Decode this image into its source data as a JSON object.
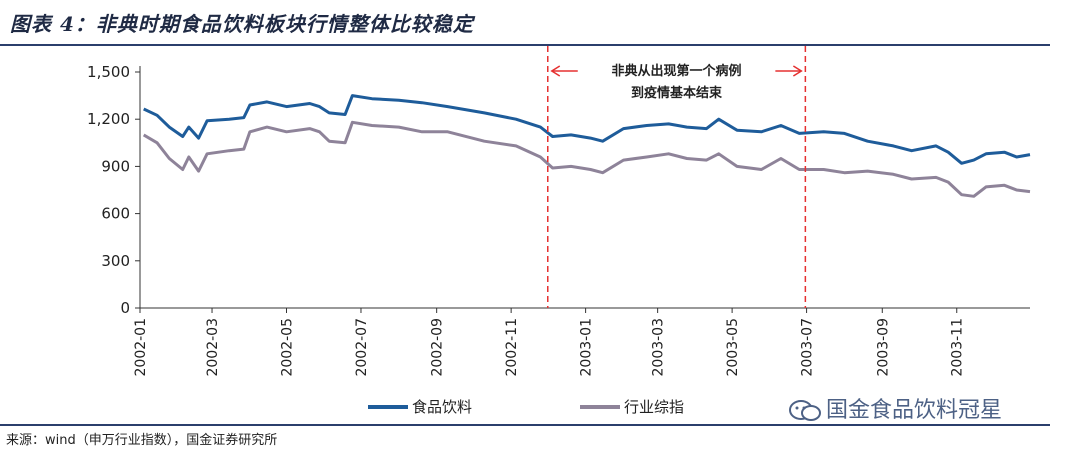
{
  "header": {
    "title": "图表 4：非典时期食品饮料板块行情整体比较稳定"
  },
  "footer": {
    "source": "来源：wind（申万行业指数），国金证券研究所",
    "watermark": "国金食品饮料冠星"
  },
  "colors": {
    "food_beverage": "#1e5c9a",
    "industry_composite": "#8e8399",
    "annotation": "#e53030",
    "rule": "#2b3f6c"
  },
  "chart_data": {
    "type": "line",
    "title": "",
    "xlabel": "",
    "ylabel": "",
    "ylim": [
      0,
      1500
    ],
    "yticks": [
      0,
      300,
      600,
      900,
      1200,
      1500
    ],
    "ytick_labels": [
      "0",
      "300",
      "600",
      "900",
      "1,200",
      "1,500"
    ],
    "xlim": [
      "2002-01-01",
      "2003-12-31"
    ],
    "xticks": [
      "2002-01",
      "2002-03",
      "2002-05",
      "2002-07",
      "2002-09",
      "2002-11",
      "2003-01",
      "2003-03",
      "2003-05",
      "2003-07",
      "2003-09",
      "2003-11"
    ],
    "grid": false,
    "legend_position": "bottom",
    "series": [
      {
        "name": "食品饮料",
        "color": "#1e5c9a",
        "points": [
          [
            "2002-01-04",
            1265
          ],
          [
            "2002-01-15",
            1225
          ],
          [
            "2002-01-25",
            1150
          ],
          [
            "2002-02-05",
            1090
          ],
          [
            "2002-02-10",
            1150
          ],
          [
            "2002-02-18",
            1080
          ],
          [
            "2002-02-25",
            1190
          ],
          [
            "2002-03-15",
            1200
          ],
          [
            "2002-03-27",
            1210
          ],
          [
            "2002-04-01",
            1290
          ],
          [
            "2002-04-15",
            1310
          ],
          [
            "2002-05-01",
            1280
          ],
          [
            "2002-05-20",
            1300
          ],
          [
            "2002-05-28",
            1280
          ],
          [
            "2002-06-05",
            1240
          ],
          [
            "2002-06-18",
            1230
          ],
          [
            "2002-06-24",
            1350
          ],
          [
            "2002-07-10",
            1330
          ],
          [
            "2002-08-01",
            1320
          ],
          [
            "2002-08-20",
            1305
          ],
          [
            "2002-09-10",
            1280
          ],
          [
            "2002-10-10",
            1240
          ],
          [
            "2002-11-05",
            1200
          ],
          [
            "2002-11-25",
            1150
          ],
          [
            "2002-12-05",
            1090
          ],
          [
            "2002-12-20",
            1100
          ],
          [
            "2003-01-05",
            1080
          ],
          [
            "2003-01-15",
            1060
          ],
          [
            "2003-02-01",
            1140
          ],
          [
            "2003-02-20",
            1160
          ],
          [
            "2003-03-10",
            1170
          ],
          [
            "2003-03-25",
            1150
          ],
          [
            "2003-04-10",
            1140
          ],
          [
            "2003-04-20",
            1200
          ],
          [
            "2003-05-05",
            1130
          ],
          [
            "2003-05-25",
            1120
          ],
          [
            "2003-06-10",
            1160
          ],
          [
            "2003-06-25",
            1110
          ],
          [
            "2003-07-15",
            1120
          ],
          [
            "2003-08-01",
            1110
          ],
          [
            "2003-08-20",
            1060
          ],
          [
            "2003-09-10",
            1030
          ],
          [
            "2003-09-25",
            1000
          ],
          [
            "2003-10-15",
            1030
          ],
          [
            "2003-10-25",
            990
          ],
          [
            "2003-11-05",
            920
          ],
          [
            "2003-11-15",
            940
          ],
          [
            "2003-11-25",
            980
          ],
          [
            "2003-12-10",
            990
          ],
          [
            "2003-12-20",
            960
          ],
          [
            "2003-12-31",
            975
          ]
        ]
      },
      {
        "name": "行业综指",
        "color": "#8e8399",
        "points": [
          [
            "2002-01-04",
            1100
          ],
          [
            "2002-01-15",
            1050
          ],
          [
            "2002-01-25",
            950
          ],
          [
            "2002-02-05",
            880
          ],
          [
            "2002-02-10",
            960
          ],
          [
            "2002-02-18",
            870
          ],
          [
            "2002-02-25",
            980
          ],
          [
            "2002-03-15",
            1000
          ],
          [
            "2002-03-27",
            1010
          ],
          [
            "2002-04-01",
            1120
          ],
          [
            "2002-04-15",
            1150
          ],
          [
            "2002-05-01",
            1120
          ],
          [
            "2002-05-20",
            1140
          ],
          [
            "2002-05-28",
            1120
          ],
          [
            "2002-06-05",
            1060
          ],
          [
            "2002-06-18",
            1050
          ],
          [
            "2002-06-24",
            1180
          ],
          [
            "2002-07-10",
            1160
          ],
          [
            "2002-08-01",
            1150
          ],
          [
            "2002-08-20",
            1120
          ],
          [
            "2002-09-10",
            1120
          ],
          [
            "2002-10-10",
            1060
          ],
          [
            "2002-11-05",
            1030
          ],
          [
            "2002-11-25",
            960
          ],
          [
            "2002-12-05",
            890
          ],
          [
            "2002-12-20",
            900
          ],
          [
            "2003-01-05",
            880
          ],
          [
            "2003-01-15",
            860
          ],
          [
            "2003-02-01",
            940
          ],
          [
            "2003-02-20",
            960
          ],
          [
            "2003-03-10",
            980
          ],
          [
            "2003-03-25",
            950
          ],
          [
            "2003-04-10",
            940
          ],
          [
            "2003-04-20",
            980
          ],
          [
            "2003-05-05",
            900
          ],
          [
            "2003-05-25",
            880
          ],
          [
            "2003-06-10",
            950
          ],
          [
            "2003-06-25",
            880
          ],
          [
            "2003-07-15",
            880
          ],
          [
            "2003-08-01",
            860
          ],
          [
            "2003-08-20",
            870
          ],
          [
            "2003-09-10",
            850
          ],
          [
            "2003-09-25",
            820
          ],
          [
            "2003-10-15",
            830
          ],
          [
            "2003-10-25",
            800
          ],
          [
            "2003-11-05",
            720
          ],
          [
            "2003-11-15",
            710
          ],
          [
            "2003-11-25",
            770
          ],
          [
            "2003-12-10",
            780
          ],
          [
            "2003-12-20",
            750
          ],
          [
            "2003-12-31",
            740
          ]
        ]
      }
    ],
    "annotations": [
      {
        "type": "vertical_dashed_line",
        "date": "2002-12-01",
        "color": "#e53030"
      },
      {
        "type": "vertical_dashed_line",
        "date": "2003-06-30",
        "color": "#e53030"
      },
      {
        "type": "text_span",
        "from": "2002-12-01",
        "to": "2003-06-30",
        "lines": [
          "非典从出现第一个病例",
          "到疫情基本结束"
        ]
      }
    ]
  }
}
